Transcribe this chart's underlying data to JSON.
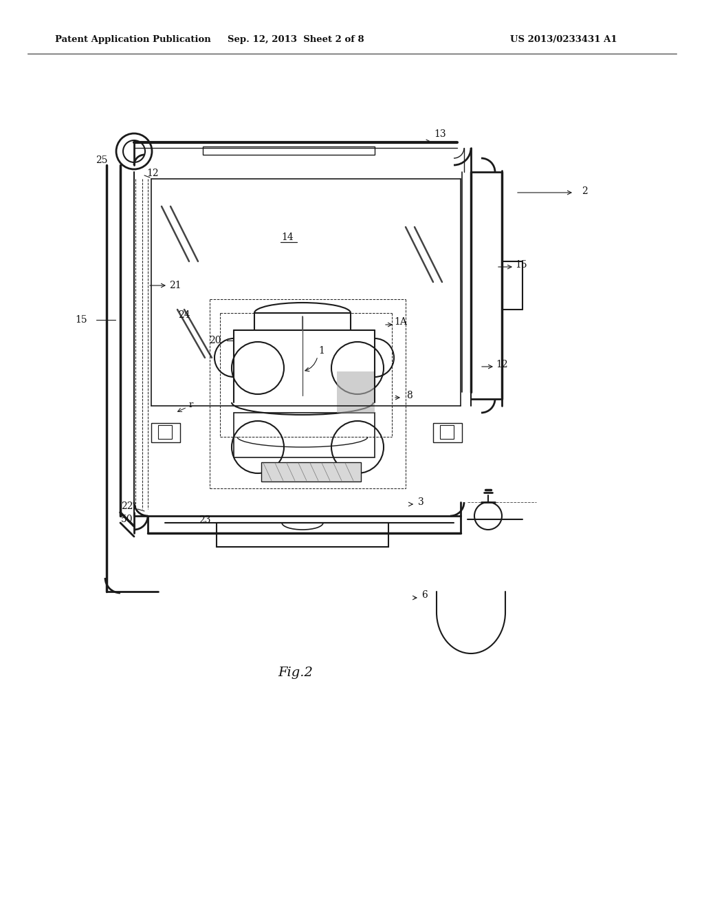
{
  "bg_color": "#ffffff",
  "header_left": "Patent Application Publication",
  "header_mid": "Sep. 12, 2013  Sheet 2 of 8",
  "header_right": "US 2013/0233431 A1",
  "figure_caption": "Fig.2",
  "line_color": "#1a1a1a",
  "lw_main": 1.8,
  "lw_thin": 0.9,
  "lw_dashed": 0.7,
  "fig_width": 10.24,
  "fig_height": 13.2,
  "dpi": 100
}
